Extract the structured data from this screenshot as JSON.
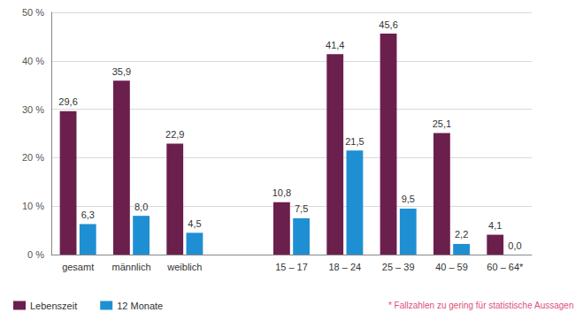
{
  "chart_data": {
    "type": "bar",
    "categories": [
      "gesamt",
      "männlich",
      "weiblich",
      null,
      "15 – 17",
      "18 – 24",
      "25 – 39",
      "40 – 59",
      "60 – 64*"
    ],
    "series": [
      {
        "name": "Lebenszeit",
        "color": "#6b1f4c",
        "values": [
          29.6,
          35.9,
          22.9,
          null,
          10.8,
          41.4,
          45.6,
          25.1,
          4.1
        ],
        "value_labels": [
          "29,6",
          "35,9",
          "22,9",
          null,
          "10,8",
          "41,4",
          "45,6",
          "25,1",
          "4,1"
        ]
      },
      {
        "name": "12 Monate",
        "color": "#1f8fd3",
        "values": [
          6.3,
          8.0,
          4.5,
          null,
          7.5,
          21.5,
          9.5,
          2.2,
          0.0
        ],
        "value_labels": [
          "6,3",
          "8,0",
          "4,5",
          null,
          "7,5",
          "21,5",
          "9,5",
          "2,2",
          "0,0"
        ]
      }
    ],
    "ylim": [
      0,
      50
    ],
    "yticks": [
      {
        "value": 0,
        "label": "0 %"
      },
      {
        "value": 10,
        "label": "10 %"
      },
      {
        "value": 20,
        "label": "20 %"
      },
      {
        "value": 30,
        "label": "30 %"
      },
      {
        "value": 40,
        "label": "40 %"
      },
      {
        "value": 50,
        "label": "50 %"
      }
    ],
    "grid": true,
    "legend": "bottom left",
    "data_labels": true,
    "annotations": [
      "* Fallzahlen zu gering für statistische Aussagen"
    ]
  }
}
